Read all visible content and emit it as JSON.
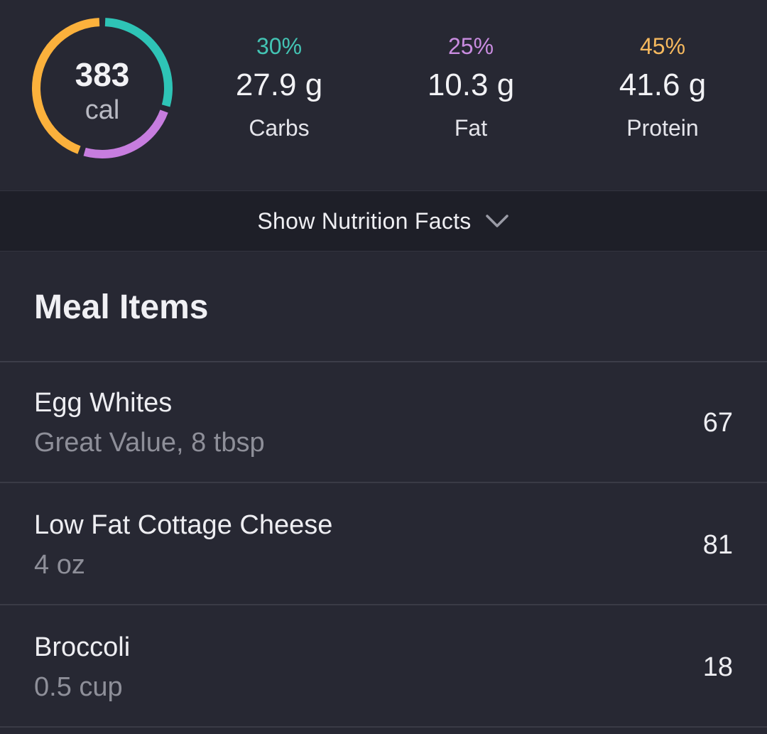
{
  "summary": {
    "calories": "383",
    "calories_unit": "cal",
    "ring_colors": {
      "carbs": "#2ec4b6",
      "fat": "#c77ddf",
      "protein": "#fbb13c"
    },
    "macro_fractions": {
      "carbs": 0.3,
      "fat": 0.25,
      "protein": 0.45
    },
    "macros": [
      {
        "percent": "30%",
        "grams": "27.9 g",
        "name": "Carbs",
        "color": "#43c4b4"
      },
      {
        "percent": "25%",
        "grams": "10.3 g",
        "name": "Fat",
        "color": "#c98ce0"
      },
      {
        "percent": "45%",
        "grams": "41.6 g",
        "name": "Protein",
        "color": "#f6b95e"
      }
    ]
  },
  "facts_toggle": {
    "label": "Show Nutrition Facts",
    "icon": "chevron-down-icon"
  },
  "meal_items": {
    "title": "Meal Items",
    "items": [
      {
        "name": "Egg Whites",
        "detail": "Great Value, 8 tbsp",
        "calories": "67"
      },
      {
        "name": "Low Fat Cottage Cheese",
        "detail": "4 oz",
        "calories": "81"
      },
      {
        "name": "Broccoli",
        "detail": "0.5 cup",
        "calories": "18"
      }
    ]
  }
}
